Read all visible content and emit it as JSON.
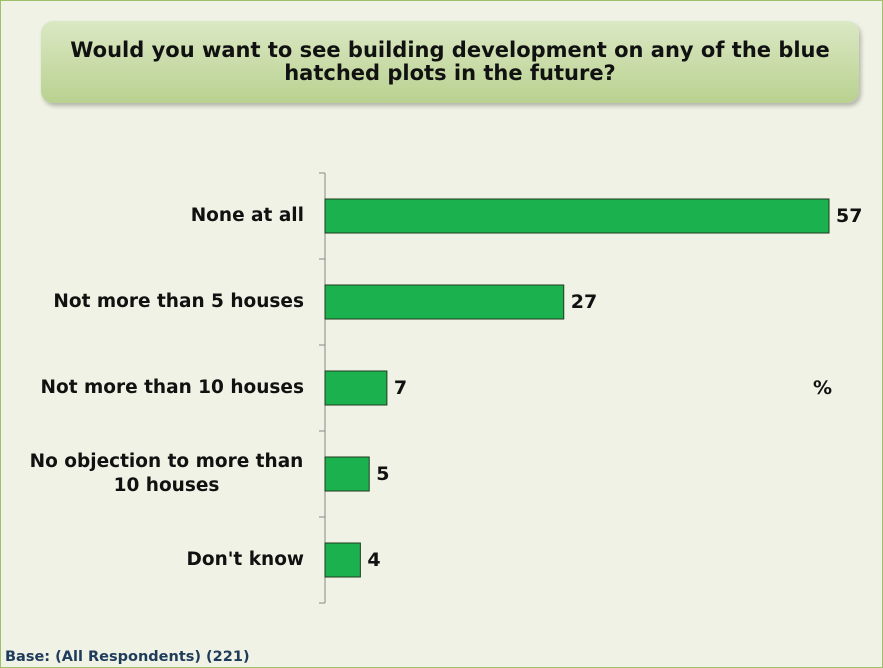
{
  "chart_data": {
    "type": "bar",
    "orientation": "horizontal",
    "title": "Would you want to see building development on any of the blue hatched plots in the future?",
    "categories": [
      "None at all",
      "Not more than 5 houses",
      "Not more than 10 houses",
      "No objection to more than 10 houses",
      "Don't know"
    ],
    "values": [
      57,
      27,
      7,
      5,
      4
    ],
    "color": "#1cb14f",
    "unit": "%",
    "note": "Base: (All Respondents) (221)"
  }
}
